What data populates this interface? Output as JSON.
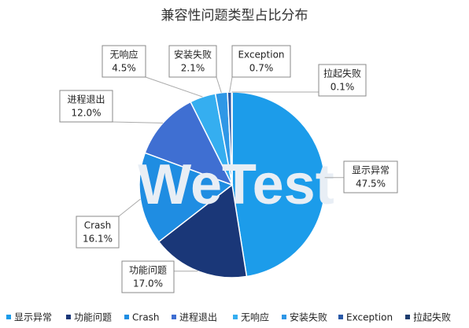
{
  "chart_data": {
    "type": "pie",
    "title": "兼容性问题类型占比分布",
    "watermark": "WeTest",
    "categories": [
      "显示异常",
      "功能问题",
      "Crash",
      "进程退出",
      "无响应",
      "安装失败",
      "Exception",
      "拉起失败"
    ],
    "values": [
      47.5,
      17.0,
      16.1,
      12.0,
      4.5,
      2.1,
      0.7,
      0.1
    ],
    "value_labels": [
      "47.5%",
      "17.0%",
      "16.1%",
      "12.0%",
      "4.5%",
      "2.1%",
      "0.7%",
      "0.1%"
    ],
    "colors": [
      "#1c9cea",
      "#1a3778",
      "#1f8de2",
      "#3f6fd2",
      "#35aef0",
      "#2f97e6",
      "#2a5aa8",
      "#1d3c6e"
    ],
    "legend": "bottom"
  }
}
